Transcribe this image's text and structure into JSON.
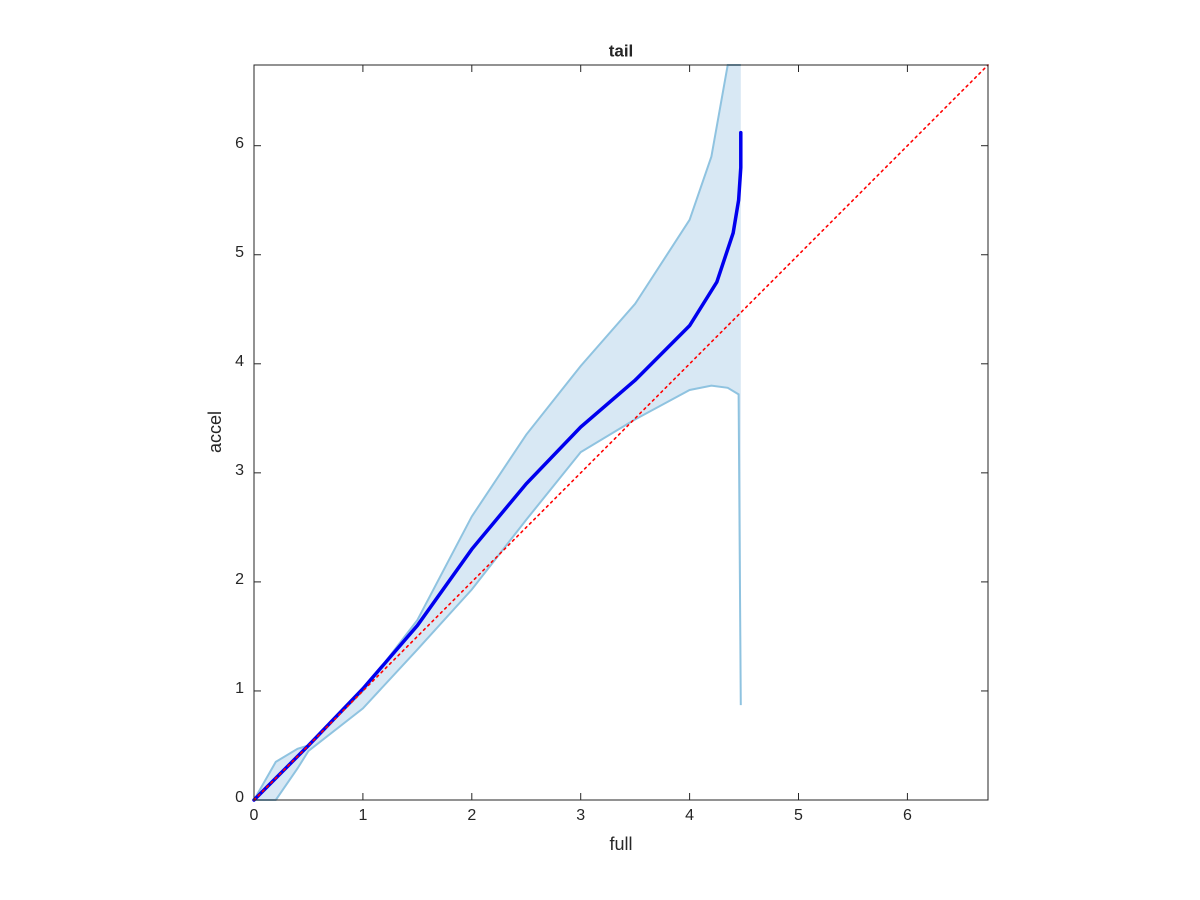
{
  "chart_data": {
    "type": "line",
    "title": "tail",
    "x_label": "full",
    "y_label": "accel",
    "xlim": [
      0,
      6.74
    ],
    "ylim": [
      0,
      6.74
    ],
    "xticks": [
      0,
      1,
      2,
      3,
      4,
      5,
      6
    ],
    "yticks": [
      0,
      1,
      2,
      3,
      4,
      5,
      6
    ],
    "band": {
      "color": "#8fc3e0",
      "fill": "#d8e8f4",
      "x": [
        0,
        0.2,
        0.4,
        0.5,
        1,
        1.5,
        2,
        2.5,
        3,
        3.5,
        4,
        4.2,
        4.35,
        4.45,
        4.47
      ],
      "upper": [
        0,
        0.35,
        0.47,
        0.5,
        1.0,
        1.65,
        2.6,
        3.35,
        3.98,
        4.55,
        5.32,
        5.9,
        6.74,
        6.74,
        6.74
      ],
      "lower": [
        0,
        0,
        0.29,
        0.45,
        0.84,
        1.38,
        1.93,
        2.57,
        3.19,
        3.49,
        3.76,
        3.8,
        3.78,
        3.72,
        0.87
      ]
    },
    "series": [
      {
        "color": "#0000ee",
        "dash": false,
        "x": [
          0,
          0.5,
          1,
          1.5,
          2,
          2.5,
          3,
          3.5,
          4,
          4.25,
          4.4,
          4.45,
          4.47,
          4.47
        ],
        "values": [
          0,
          0.5,
          1.02,
          1.6,
          2.3,
          2.9,
          3.42,
          3.85,
          4.35,
          4.75,
          5.2,
          5.5,
          5.8,
          6.12
        ]
      },
      {
        "color": "#ff0000",
        "dash": true,
        "x": [
          0,
          6.74
        ],
        "values": [
          0,
          6.74
        ]
      }
    ]
  }
}
